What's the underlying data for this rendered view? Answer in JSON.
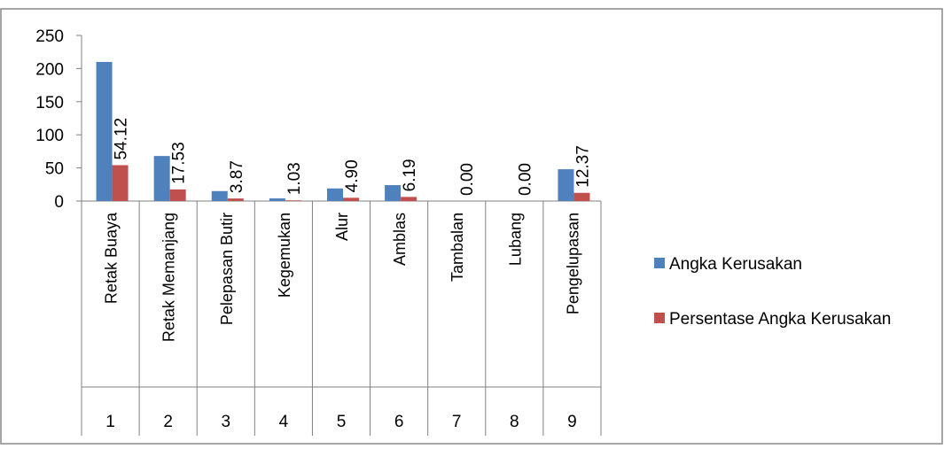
{
  "chart_data": {
    "type": "bar",
    "title": "",
    "xlabel": "",
    "ylabel": "",
    "ylim": [
      0,
      250
    ],
    "yticks": [
      0,
      50,
      100,
      150,
      200,
      250
    ],
    "grid": false,
    "legend_position": "right",
    "categories": [
      {
        "num": "1",
        "name": "Retak Buaya"
      },
      {
        "num": "2",
        "name": "Retak Memanjang"
      },
      {
        "num": "3",
        "name": "Pelepasan Butir"
      },
      {
        "num": "4",
        "name": "Kegemukan"
      },
      {
        "num": "5",
        "name": "Alur"
      },
      {
        "num": "6",
        "name": "Amblas"
      },
      {
        "num": "7",
        "name": "Tambalan"
      },
      {
        "num": "8",
        "name": "Lubang"
      },
      {
        "num": "9",
        "name": "Pengelupasan"
      }
    ],
    "series": [
      {
        "name": "Angka Kerusakan",
        "color": "#4F81BD",
        "values": [
          210,
          68,
          15,
          4,
          19,
          24,
          0,
          0,
          48
        ]
      },
      {
        "name": "Persentase Angka Kerusakan",
        "color": "#C0504D",
        "values": [
          54.12,
          17.53,
          3.87,
          1.03,
          4.9,
          6.19,
          0.0,
          0.0,
          12.37
        ],
        "data_labels": [
          "54.12",
          "17.53",
          "3.87",
          "1.03",
          "4.90",
          "6.19",
          "0.00",
          "0.00",
          "12.37"
        ]
      }
    ]
  }
}
